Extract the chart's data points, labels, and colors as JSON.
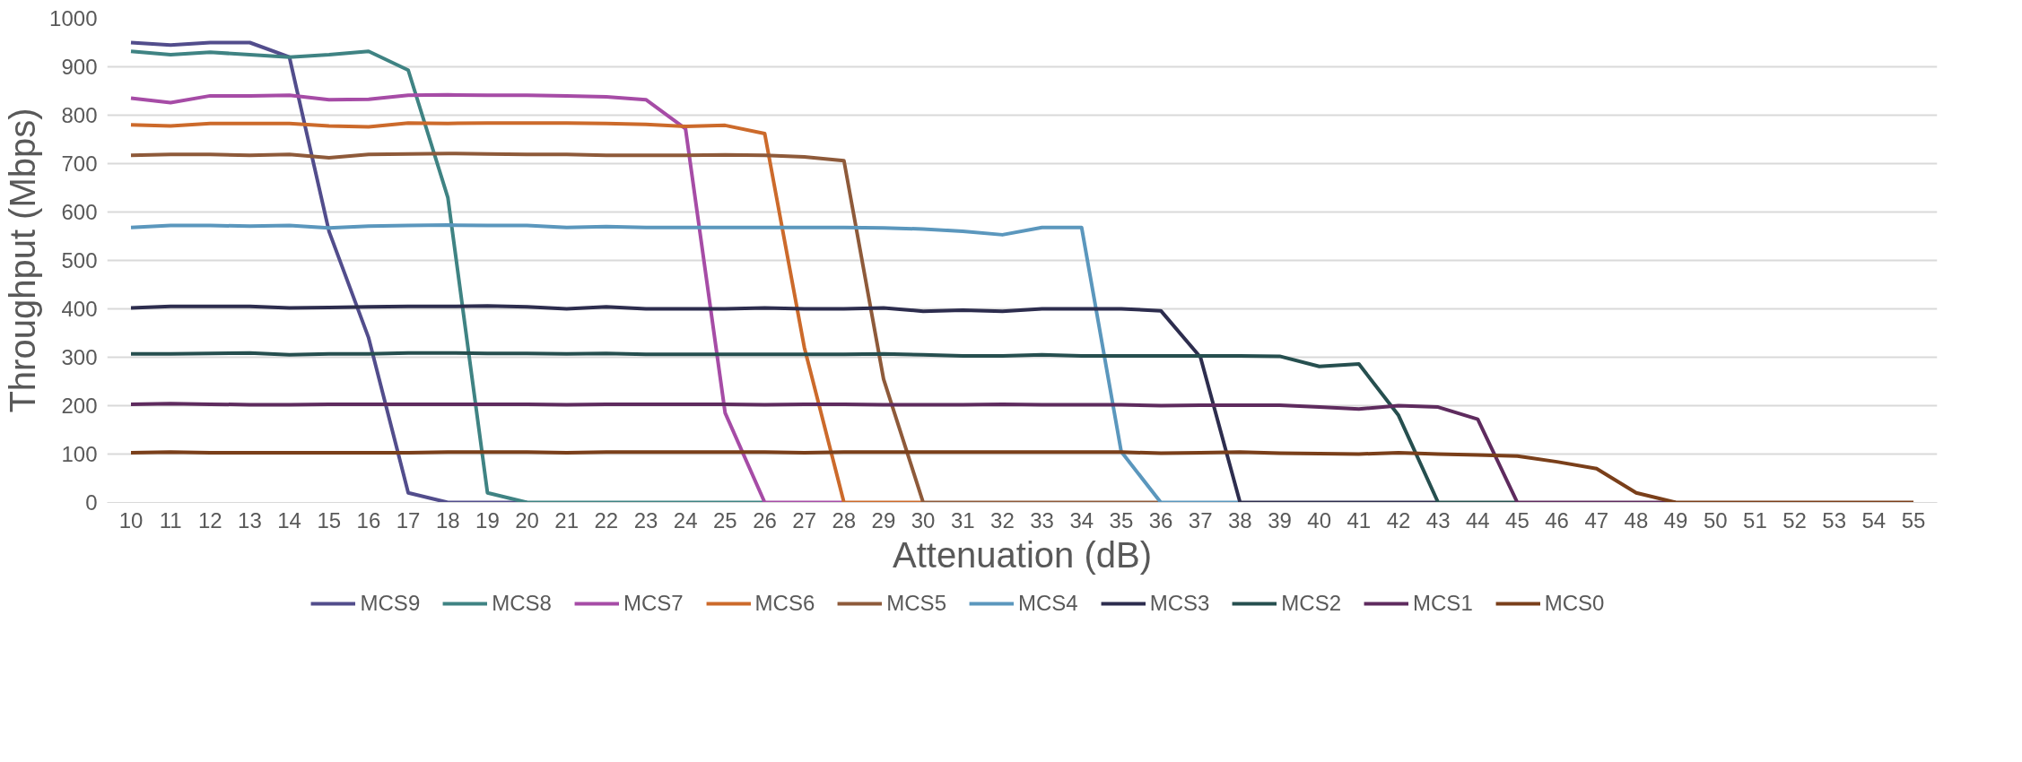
{
  "chart_data": {
    "type": "line",
    "xlabel": "Attenuation (dB)",
    "ylabel": "Throughput (Mbps)",
    "categories": [
      "10",
      "11",
      "12",
      "13",
      "14",
      "15",
      "16",
      "17",
      "18",
      "19",
      "20",
      "21",
      "22",
      "23",
      "24",
      "25",
      "26",
      "27",
      "28",
      "29",
      "30",
      "31",
      "32",
      "33",
      "34",
      "35",
      "36",
      "37",
      "38",
      "39",
      "40",
      "41",
      "42",
      "43",
      "44",
      "45",
      "46",
      "47",
      "48",
      "49",
      "50",
      "51",
      "52",
      "53",
      "54",
      "55"
    ],
    "ylim": [
      0,
      1000
    ],
    "yticks": [
      0,
      100,
      200,
      300,
      400,
      500,
      600,
      700,
      800,
      900,
      1000
    ],
    "grid": "y",
    "legend": "bottom",
    "marker": "none",
    "line_style": "solid",
    "series": [
      {
        "name": "MCS9",
        "color": "#524d8c",
        "values": [
          950,
          945,
          950,
          950,
          920,
          560,
          340,
          20,
          0,
          0,
          0,
          null,
          null,
          null,
          null,
          null,
          null,
          null,
          null,
          null,
          null,
          null,
          null,
          null,
          null,
          null,
          null,
          null,
          null,
          null,
          null,
          null,
          null,
          null,
          null,
          null,
          null,
          null,
          null,
          null,
          null,
          null,
          null,
          null,
          null,
          null
        ]
      },
      {
        "name": "MCS8",
        "color": "#3f8383",
        "values": [
          932,
          925,
          930,
          925,
          920,
          925,
          932,
          893,
          630,
          20,
          0,
          0,
          0,
          0,
          0,
          0,
          0,
          null,
          null,
          null,
          null,
          null,
          null,
          null,
          null,
          null,
          null,
          null,
          null,
          null,
          null,
          null,
          null,
          null,
          null,
          null,
          null,
          null,
          null,
          null,
          null,
          null,
          null,
          null,
          null,
          null
        ]
      },
      {
        "name": "MCS7",
        "color": "#a64ca6",
        "values": [
          835,
          826,
          840,
          840,
          841,
          832,
          833,
          841,
          842,
          841,
          841,
          840,
          838,
          832,
          772,
          185,
          0,
          0,
          0,
          null,
          null,
          null,
          null,
          null,
          null,
          null,
          null,
          null,
          null,
          null,
          null,
          null,
          null,
          null,
          null,
          null,
          null,
          null,
          null,
          null,
          null,
          null,
          null,
          null,
          null,
          null
        ]
      },
      {
        "name": "MCS6",
        "color": "#cc6a2b",
        "values": [
          780,
          778,
          783,
          783,
          783,
          778,
          776,
          784,
          783,
          784,
          784,
          784,
          783,
          781,
          777,
          779,
          762,
          320,
          0,
          0,
          0,
          null,
          null,
          null,
          null,
          null,
          null,
          null,
          null,
          null,
          null,
          null,
          null,
          null,
          null,
          null,
          null,
          null,
          null,
          null,
          null,
          null,
          null,
          null,
          null,
          null
        ]
      },
      {
        "name": "MCS5",
        "color": "#8e5a3a",
        "values": [
          717,
          719,
          719,
          717,
          719,
          712,
          719,
          720,
          721,
          720,
          719,
          719,
          717,
          717,
          717,
          718,
          717,
          714,
          706,
          255,
          0,
          0,
          0,
          0,
          0,
          0,
          0,
          null,
          null,
          null,
          null,
          null,
          null,
          null,
          null,
          null,
          null,
          null,
          null,
          null,
          null,
          null,
          null,
          null,
          null,
          null
        ]
      },
      {
        "name": "MCS4",
        "color": "#5b97bd",
        "values": [
          568,
          572,
          572,
          571,
          572,
          567,
          571,
          572,
          573,
          572,
          572,
          568,
          570,
          568,
          568,
          568,
          568,
          568,
          568,
          567,
          565,
          560,
          553,
          568,
          568,
          105,
          0,
          0,
          0,
          null,
          null,
          null,
          null,
          null,
          null,
          null,
          null,
          null,
          null,
          null,
          null,
          null,
          null,
          null,
          null,
          null
        ]
      },
      {
        "name": "MCS3",
        "color": "#2d2d4e",
        "values": [
          402,
          405,
          405,
          405,
          402,
          403,
          404,
          405,
          405,
          406,
          404,
          400,
          404,
          400,
          400,
          400,
          402,
          400,
          400,
          402,
          395,
          397,
          395,
          400,
          400,
          400,
          396,
          300,
          0,
          0,
          0,
          0,
          0,
          0,
          null,
          null,
          null,
          null,
          null,
          null,
          null,
          null,
          null,
          null,
          null,
          null
        ]
      },
      {
        "name": "MCS2",
        "color": "#264f4f",
        "values": [
          307,
          307,
          308,
          309,
          305,
          307,
          307,
          309,
          309,
          308,
          308,
          307,
          308,
          306,
          306,
          306,
          306,
          306,
          306,
          307,
          305,
          303,
          303,
          305,
          303,
          303,
          303,
          303,
          303,
          302,
          281,
          286,
          180,
          0,
          0,
          0,
          null,
          null,
          null,
          null,
          null,
          null,
          null,
          null,
          null,
          null
        ]
      },
      {
        "name": "MCS1",
        "color": "#5e2b5e",
        "values": [
          203,
          204,
          203,
          202,
          202,
          203,
          203,
          203,
          203,
          203,
          203,
          202,
          203,
          203,
          203,
          203,
          202,
          203,
          203,
          202,
          202,
          202,
          203,
          202,
          202,
          202,
          200,
          201,
          201,
          201,
          197,
          193,
          200,
          197,
          172,
          0,
          0,
          0,
          0,
          0,
          null,
          null,
          null,
          null,
          null,
          null
        ]
      },
      {
        "name": "MCS0",
        "color": "#7a3f1a",
        "values": [
          103,
          104,
          103,
          103,
          103,
          103,
          103,
          103,
          104,
          104,
          104,
          103,
          104,
          104,
          104,
          104,
          104,
          103,
          104,
          104,
          104,
          104,
          104,
          104,
          104,
          104,
          102,
          103,
          104,
          102,
          101,
          100,
          103,
          100,
          98,
          96,
          84,
          70,
          20,
          0,
          0,
          0,
          0,
          0,
          0,
          0
        ]
      }
    ]
  }
}
